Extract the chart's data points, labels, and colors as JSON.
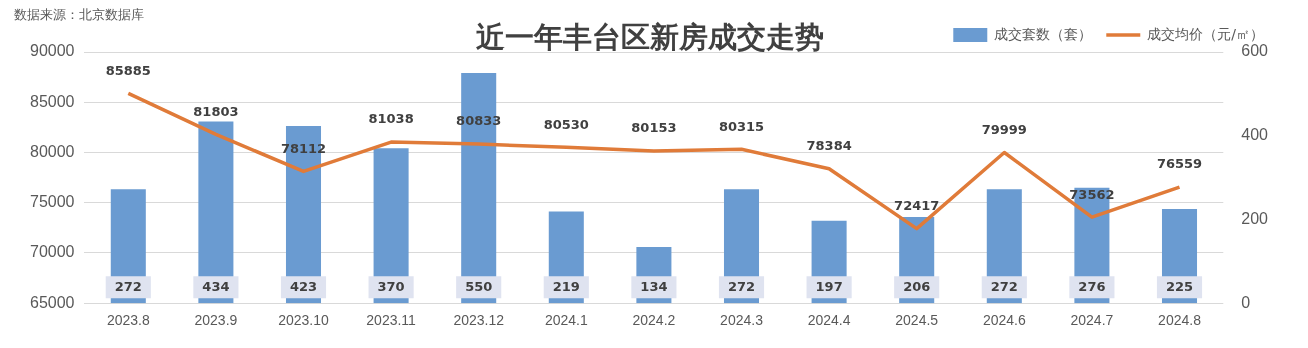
{
  "chart_data": {
    "type": "bar",
    "title": "近一年丰台区新房成交走势",
    "annotations": [
      "数据来源：北京数据库"
    ],
    "categories": [
      "2023.8",
      "2023.9",
      "2023.10",
      "2023.11",
      "2023.12",
      "2024.1",
      "2024.2",
      "2024.3",
      "2024.4",
      "2024.5",
      "2024.6",
      "2024.7",
      "2024.8"
    ],
    "series": [
      {
        "name": "成交套数（套）",
        "axis": "y2",
        "color": "#6a9bd1",
        "values": [
          272,
          434,
          423,
          370,
          550,
          219,
          134,
          272,
          197,
          206,
          272,
          276,
          225
        ]
      },
      {
        "name": "成交均价（元/㎡）",
        "type": "line",
        "color": "#e07b39",
        "values": [
          85885,
          81803,
          78112,
          81038,
          80833,
          80530,
          80153,
          80315,
          78384,
          72417,
          79999,
          73562,
          76559
        ]
      }
    ],
    "ylim": [
      65000,
      90000
    ],
    "yticks": [
      65000,
      70000,
      75000,
      80000,
      85000,
      90000
    ],
    "y2lim": [
      0,
      600
    ],
    "y2ticks": [
      0,
      200,
      400,
      600
    ],
    "grid": "y",
    "legend": "top right",
    "data_labels": true,
    "marker": "none"
  }
}
